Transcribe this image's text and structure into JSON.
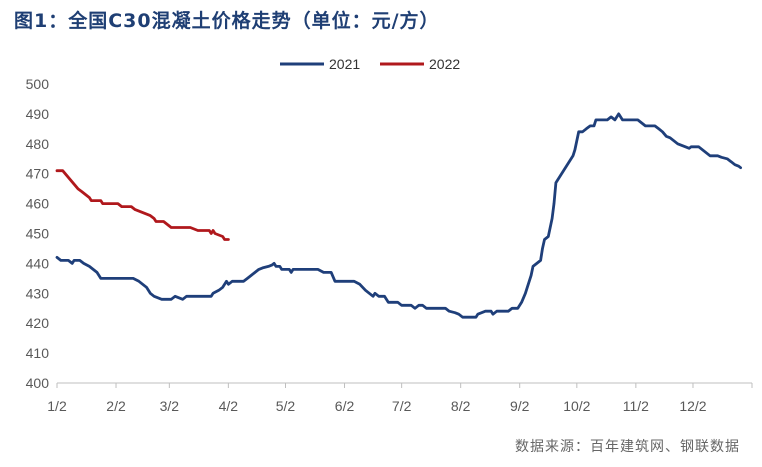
{
  "title": "图1：全国C30混凝土价格走势（单位：元/方）",
  "source": "数据来源：百年建筑网、钢联数据",
  "chart_data": {
    "type": "line",
    "title": "图1：全国C30混凝土价格走势（单位：元/方）",
    "ylabel": "",
    "xlabel": "",
    "ylim": [
      400,
      500
    ],
    "yticks": [
      400,
      410,
      420,
      430,
      440,
      450,
      460,
      470,
      480,
      490,
      500
    ],
    "xticks": [
      "1/2",
      "2/2",
      "3/2",
      "4/2",
      "5/2",
      "6/2",
      "7/2",
      "8/2",
      "9/2",
      "10/2",
      "11/2",
      "12/2"
    ],
    "legend_position": "top-center",
    "grid": false,
    "series": [
      {
        "name": "2021",
        "color": "#1f3f7a",
        "points": [
          [
            0,
            442
          ],
          [
            2,
            441
          ],
          [
            6,
            441
          ],
          [
            8,
            440
          ],
          [
            9,
            441
          ],
          [
            12,
            441
          ],
          [
            14,
            440
          ],
          [
            17,
            439
          ],
          [
            19,
            438
          ],
          [
            21,
            437
          ],
          [
            23,
            435
          ],
          [
            30,
            435
          ],
          [
            35,
            435
          ],
          [
            40,
            435
          ],
          [
            43,
            434
          ],
          [
            45,
            433
          ],
          [
            47,
            432
          ],
          [
            49,
            430
          ],
          [
            51,
            429
          ],
          [
            53,
            428.5
          ],
          [
            55,
            428
          ],
          [
            60,
            428
          ],
          [
            62,
            429
          ],
          [
            66,
            428
          ],
          [
            68,
            429
          ],
          [
            75,
            429
          ],
          [
            81,
            429
          ],
          [
            82,
            430
          ],
          [
            85,
            431
          ],
          [
            87,
            432
          ],
          [
            89,
            434
          ],
          [
            90,
            433
          ],
          [
            92,
            434
          ],
          [
            98,
            434
          ],
          [
            100,
            435
          ],
          [
            102,
            436
          ],
          [
            104,
            437
          ],
          [
            106,
            438
          ],
          [
            108,
            438.5
          ],
          [
            111,
            439
          ],
          [
            113,
            439.5
          ],
          [
            114,
            440
          ],
          [
            115,
            439
          ],
          [
            117,
            439
          ],
          [
            118,
            438
          ],
          [
            122,
            438
          ],
          [
            123,
            437
          ],
          [
            124,
            438
          ],
          [
            130,
            438
          ],
          [
            137,
            438
          ],
          [
            140,
            437
          ],
          [
            144,
            437
          ],
          [
            146,
            434
          ],
          [
            152,
            434
          ],
          [
            156,
            434
          ],
          [
            159,
            433
          ],
          [
            162,
            431
          ],
          [
            164,
            430
          ],
          [
            166,
            429
          ],
          [
            167,
            430
          ],
          [
            169,
            429
          ],
          [
            172,
            429
          ],
          [
            174,
            427
          ],
          [
            177,
            427
          ],
          [
            179,
            427
          ],
          [
            181,
            426
          ],
          [
            186,
            426
          ],
          [
            188,
            425
          ],
          [
            190,
            426
          ],
          [
            192,
            426
          ],
          [
            194,
            425
          ],
          [
            200,
            425
          ],
          [
            204,
            425
          ],
          [
            206,
            424
          ],
          [
            209,
            423.5
          ],
          [
            211,
            423
          ],
          [
            213,
            422
          ],
          [
            219,
            422
          ],
          [
            220,
            422
          ],
          [
            221,
            423
          ],
          [
            223,
            423.5
          ],
          [
            225,
            424
          ],
          [
            228,
            424
          ],
          [
            229,
            423
          ],
          [
            231,
            424
          ],
          [
            237,
            424
          ],
          [
            239,
            425
          ],
          [
            242,
            425
          ],
          [
            244,
            427
          ],
          [
            246,
            430
          ],
          [
            247,
            432
          ],
          [
            249,
            436
          ],
          [
            250,
            439
          ],
          [
            252,
            440
          ],
          [
            254,
            441
          ],
          [
            255,
            445
          ],
          [
            256,
            448
          ],
          [
            258,
            449
          ],
          [
            260,
            455
          ],
          [
            261,
            460
          ],
          [
            262,
            467
          ],
          [
            264,
            469
          ],
          [
            266,
            471
          ],
          [
            268,
            473
          ],
          [
            270,
            475
          ],
          [
            271,
            476
          ],
          [
            272,
            478
          ],
          [
            273,
            481
          ],
          [
            274,
            484
          ],
          [
            276,
            484
          ],
          [
            278,
            485
          ],
          [
            280,
            486
          ],
          [
            282,
            486
          ],
          [
            283,
            488
          ],
          [
            289,
            488
          ],
          [
            291,
            489
          ],
          [
            293,
            488
          ],
          [
            295,
            490
          ],
          [
            296,
            489
          ],
          [
            297,
            488
          ],
          [
            305,
            488
          ],
          [
            307,
            487
          ],
          [
            309,
            486
          ],
          [
            314,
            486
          ],
          [
            316,
            485
          ],
          [
            318,
            484
          ],
          [
            320,
            482.5
          ],
          [
            322,
            482
          ],
          [
            324,
            481
          ],
          [
            326,
            480
          ],
          [
            328,
            479.5
          ],
          [
            330,
            479
          ],
          [
            332,
            478.5
          ],
          [
            333,
            479
          ],
          [
            337,
            479
          ],
          [
            339,
            478
          ],
          [
            341,
            477
          ],
          [
            343,
            476
          ],
          [
            347,
            476
          ],
          [
            349,
            475.5
          ],
          [
            352,
            475
          ],
          [
            354,
            474
          ],
          [
            356,
            473
          ],
          [
            358,
            472.5
          ],
          [
            359,
            472
          ]
        ]
      },
      {
        "name": "2022",
        "color": "#b0181c",
        "points": [
          [
            0,
            471
          ],
          [
            3,
            471
          ],
          [
            5,
            469.5
          ],
          [
            7,
            468
          ],
          [
            9,
            466.5
          ],
          [
            11,
            465
          ],
          [
            13,
            464
          ],
          [
            15,
            463
          ],
          [
            17,
            462
          ],
          [
            18,
            461
          ],
          [
            23,
            461
          ],
          [
            24,
            460
          ],
          [
            32,
            460
          ],
          [
            34,
            459
          ],
          [
            39,
            459
          ],
          [
            41,
            458
          ],
          [
            45,
            457
          ],
          [
            49,
            456
          ],
          [
            51,
            455
          ],
          [
            52,
            454
          ],
          [
            56,
            454
          ],
          [
            58,
            453
          ],
          [
            60,
            452
          ],
          [
            66,
            452
          ],
          [
            70,
            452
          ],
          [
            72,
            451.5
          ],
          [
            74,
            451
          ],
          [
            80,
            451
          ],
          [
            81,
            450
          ],
          [
            82,
            451
          ],
          [
            83,
            450
          ],
          [
            85,
            449.5
          ],
          [
            87,
            449
          ],
          [
            88,
            448
          ],
          [
            90,
            448
          ]
        ]
      }
    ]
  }
}
